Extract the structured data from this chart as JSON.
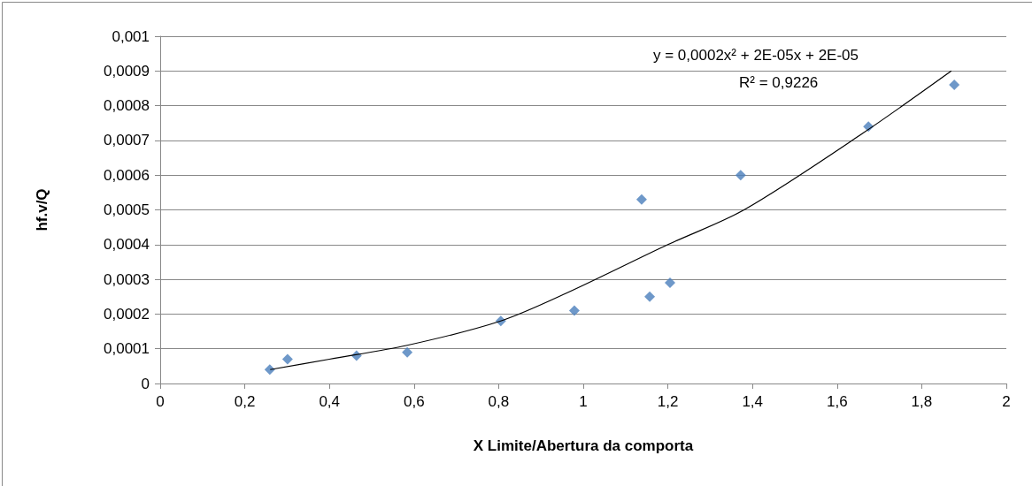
{
  "chart_data": {
    "type": "scatter",
    "xlabel": "X Limite/Abertura da comporta",
    "ylabel": "hf.v/Q",
    "xlim": [
      0,
      2
    ],
    "xticks": [
      0,
      {
        "value": 0.2,
        "label": "0,2"
      },
      {
        "value": 0.4,
        "label": "0,4"
      },
      {
        "value": 0.6,
        "label": "0,6"
      },
      {
        "value": 0.8,
        "label": "0,8"
      },
      1,
      {
        "value": 1.2,
        "label": "1,2"
      },
      {
        "value": 1.4,
        "label": "1,4"
      },
      {
        "value": 1.6,
        "label": "1,6"
      },
      {
        "value": 1.8,
        "label": "1,8"
      },
      2
    ],
    "ylim": [
      0,
      0.001
    ],
    "yticks": [
      0,
      {
        "value": 0.0001,
        "label": "0,0001"
      },
      {
        "value": 0.0002,
        "label": "0,0002"
      },
      {
        "value": 0.0003,
        "label": "0,0003"
      },
      {
        "value": 0.0004,
        "label": "0,0004"
      },
      {
        "value": 0.0005,
        "label": "0,0005"
      },
      {
        "value": 0.0006,
        "label": "0,0006"
      },
      {
        "value": 0.0007,
        "label": "0,0007"
      },
      {
        "value": 0.0008,
        "label": "0,0008"
      },
      {
        "value": 0.0009,
        "label": "0,0009"
      },
      {
        "value": 0.001,
        "label": "0,001"
      }
    ],
    "grid": "y",
    "marker": "diamond",
    "annotations": [
      "y = 0,0002x² + 2E-05x + 2E-05",
      "R² = 0,9226"
    ],
    "series": [
      {
        "color": "#4a7ebb",
        "x": [
          0.259,
          0.301,
          0.464,
          0.584,
          0.805,
          0.979,
          1.138,
          1.157,
          1.205,
          1.372,
          1.674,
          1.877
        ],
        "values": [
          4e-05,
          7e-05,
          8e-05,
          9e-05,
          0.00018,
          0.00021,
          0.00053,
          0.00025,
          0.00029,
          0.0006,
          0.00074,
          0.00086
        ]
      },
      {
        "type": "line",
        "color": "#000000",
        "marker": "none",
        "x": [
          0.26,
          0.4,
          0.584,
          0.805,
          0.96,
          1.2,
          1.38,
          1.66,
          1.87
        ],
        "values": [
          4e-05,
          7e-05,
          0.00011,
          0.00018,
          0.00026,
          0.0004,
          0.0005,
          0.00072,
          0.0009
        ]
      }
    ]
  }
}
